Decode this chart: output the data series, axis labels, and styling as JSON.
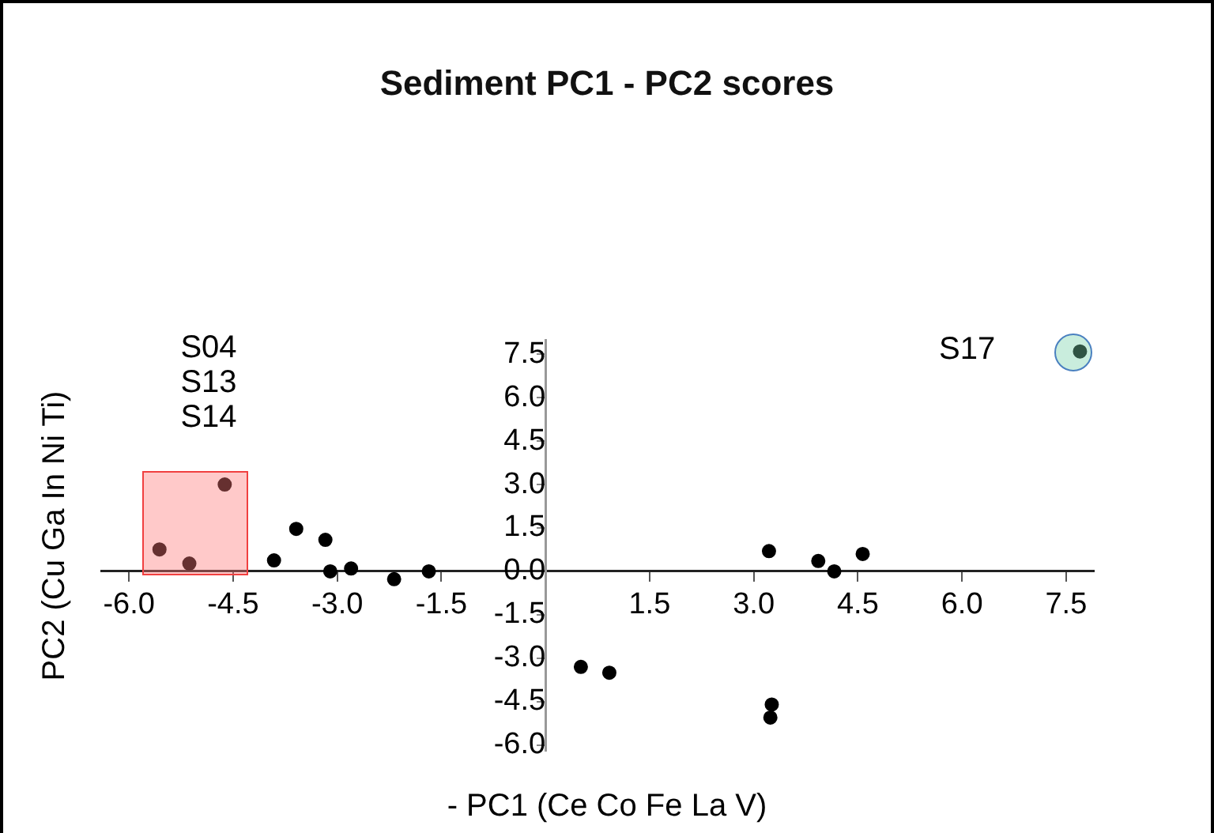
{
  "chart_data": {
    "type": "scatter",
    "title": "Sediment PC1 - PC2 scores",
    "xlabel": "- PC1 (Ce Co Fe La V)",
    "ylabel": "PC2 (Cu Ga In Ni Ti)",
    "series": [
      {
        "color": "#000000",
        "x": [
          -5.56,
          -5.13,
          -4.62,
          -3.91,
          -3.59,
          -3.17,
          -3.1,
          -2.8,
          -2.18,
          -1.68,
          0.51,
          0.92,
          3.22,
          3.93,
          4.16,
          4.57,
          3.26,
          3.24,
          7.7
        ],
        "values": [
          0.76,
          0.27,
          3.0,
          0.38,
          1.47,
          1.09,
          0.0,
          0.1,
          -0.27,
          0.0,
          -3.3,
          -3.5,
          0.7,
          0.36,
          0.0,
          0.6,
          -4.6,
          -5.05,
          7.6
        ]
      }
    ],
    "annotations": [
      "S04",
      "S13",
      "S14",
      "S17"
    ],
    "xlim": [
      -6.4,
      7.9
    ],
    "ylim": [
      -6.2,
      8.0
    ],
    "xticks": [
      {
        "value": -6,
        "label": "-6.0"
      },
      -4.5,
      {
        "value": -3,
        "label": "-3.0"
      },
      -1.5,
      1.5,
      {
        "value": 3,
        "label": "3.0"
      },
      4.5,
      {
        "value": 6,
        "label": "6.0"
      },
      7.5
    ],
    "yticks": [
      {
        "value": -6,
        "label": "-6.0"
      },
      -4.5,
      {
        "value": -3,
        "label": "-3.0"
      },
      -1.5,
      {
        "value": 0,
        "label": "0.0"
      },
      1.5,
      {
        "value": 3,
        "label": "3.0"
      },
      4.5,
      {
        "value": 6,
        "label": "6.0"
      },
      7.5
    ],
    "grid": false,
    "legend": false,
    "marker": "circle"
  }
}
